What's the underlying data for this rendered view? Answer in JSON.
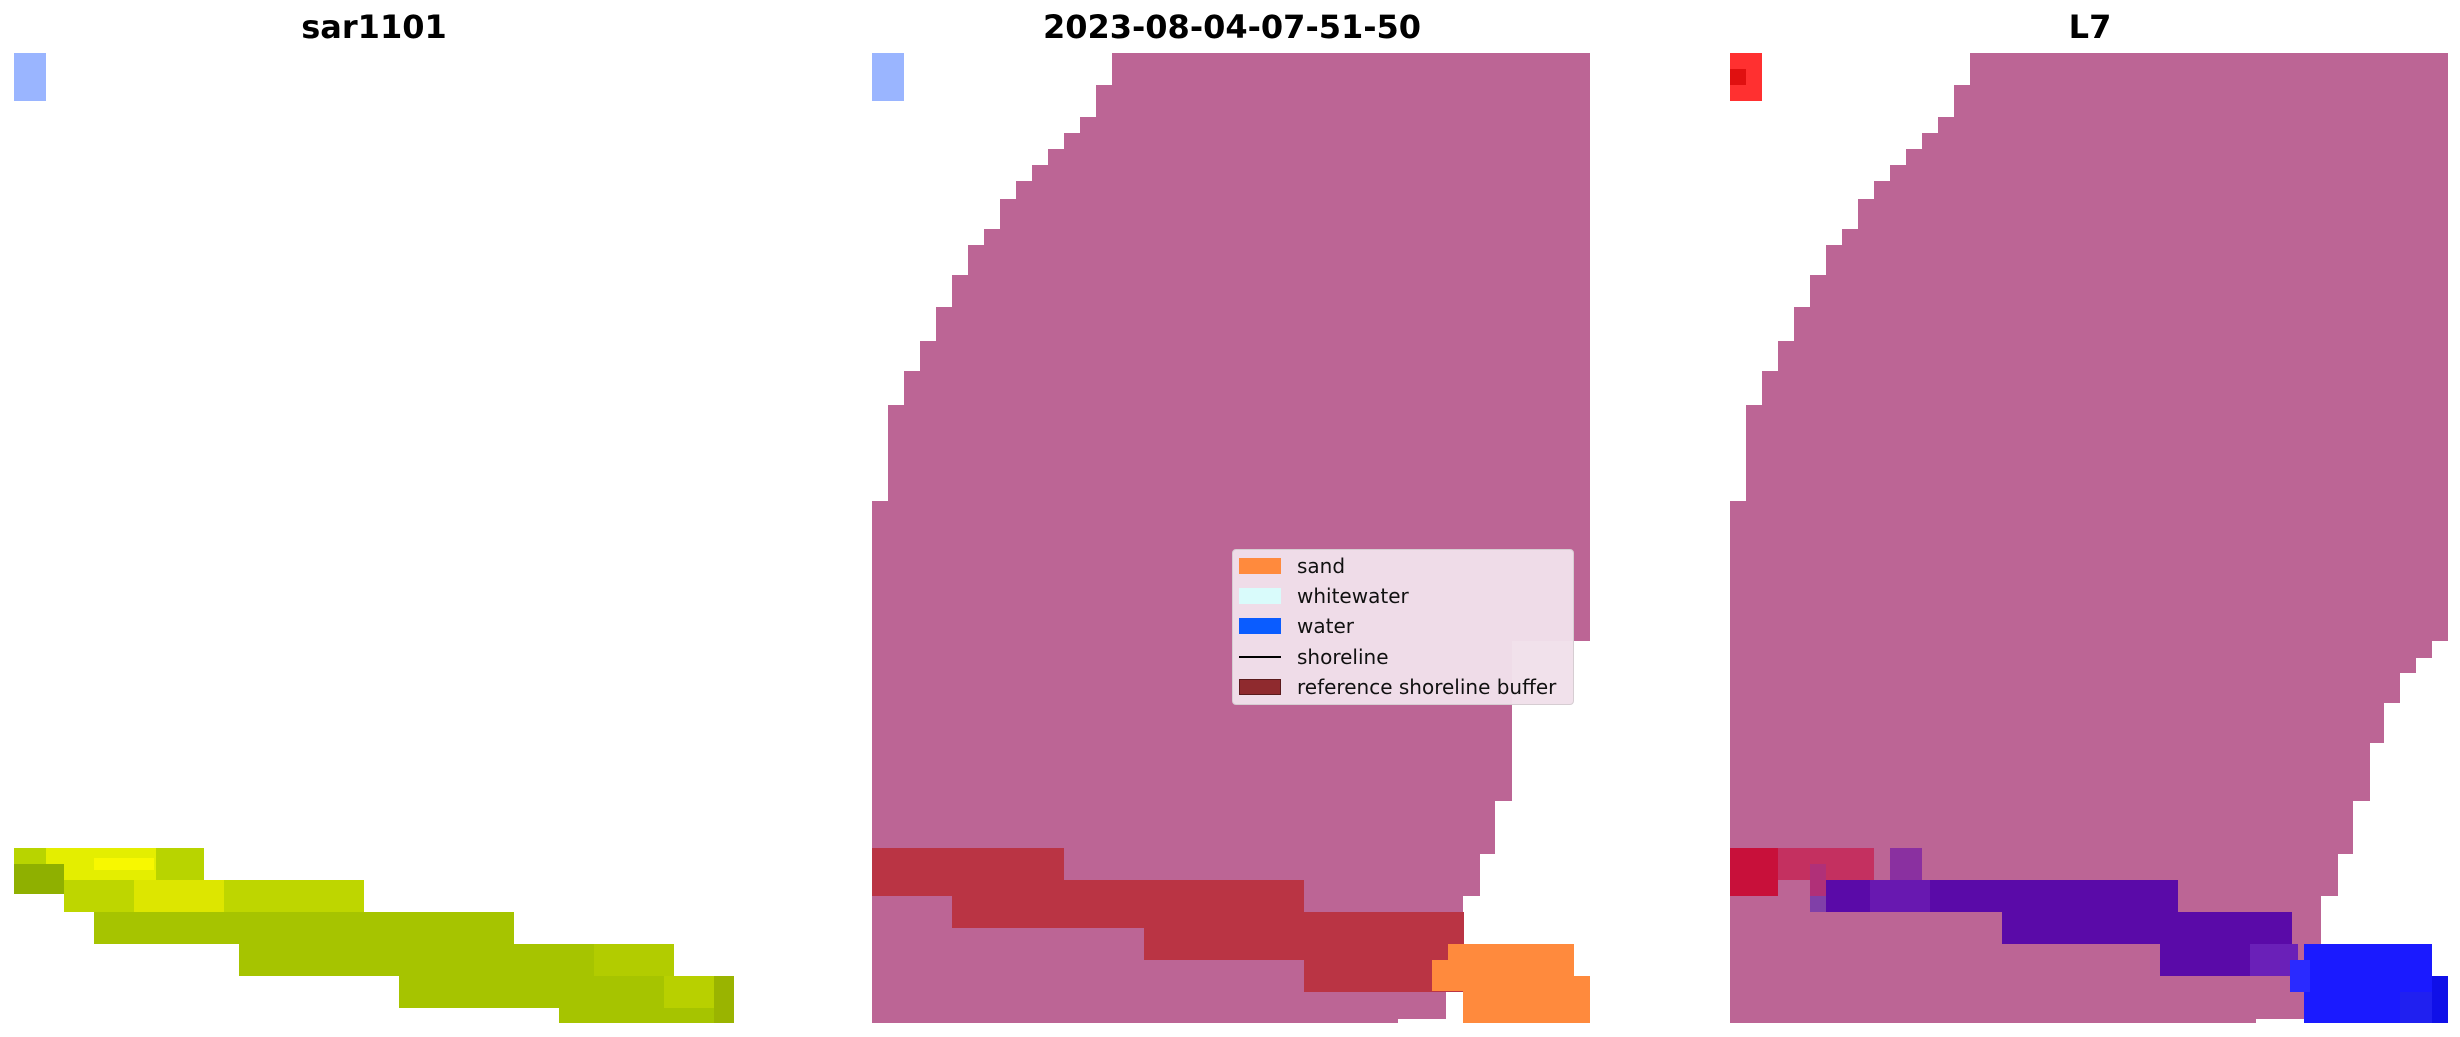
{
  "panels": [
    {
      "title": "sar1101"
    },
    {
      "title": "2023-08-04-07-51-50"
    },
    {
      "title": "L7"
    }
  ],
  "legend": {
    "items": [
      {
        "label": "sand",
        "color": "#ff8a3d",
        "kind": "patch"
      },
      {
        "label": "whitewater",
        "color": "#d9fbfb",
        "kind": "patch"
      },
      {
        "label": "water",
        "color": "#0a5cff",
        "kind": "patch"
      },
      {
        "label": "shoreline",
        "color": "#000000",
        "kind": "line"
      },
      {
        "label": "reference shoreline buffer",
        "color": "#8f2a2e",
        "kind": "patch"
      }
    ]
  },
  "colors": {
    "pink_mask": "#bc6595",
    "buffer_red": "#ba3444",
    "sand_orange": "#ff8a3d",
    "marker_blue": "#9ab5ff",
    "marker_red": "#ff2020",
    "sar_yellow_green": "#a6c400",
    "sar_bright_yellow": "#f2f500",
    "l7_purple": "#5a0aa8",
    "l7_blue": "#1a1aff"
  }
}
